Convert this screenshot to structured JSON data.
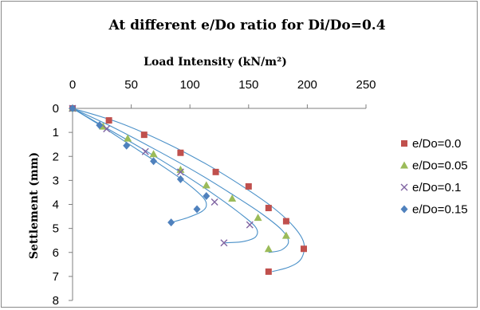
{
  "chart_data": {
    "type": "scatter",
    "title": "At different e/Do ratio for Di/Do=0.4",
    "xlabel": "Load Intensity (kN/m²)",
    "ylabel": "Settlement (mm)",
    "xlim": [
      0,
      250
    ],
    "ylim": [
      0,
      8
    ],
    "y_inverted": true,
    "x_axis_position": "top",
    "xticks": [
      "0",
      "50",
      "100",
      "150",
      "200",
      "250"
    ],
    "yticks": [
      "0",
      "1",
      "2",
      "3",
      "4",
      "5",
      "6",
      "7",
      "8"
    ],
    "grid": false,
    "legend_position": "right",
    "series": [
      {
        "name": "e/Do=0.0",
        "marker": "square",
        "color": "#c0504d",
        "points": [
          [
            0,
            0
          ],
          [
            31,
            0.5
          ],
          [
            61,
            1.1
          ],
          [
            92,
            1.85
          ],
          [
            122,
            2.65
          ],
          [
            150,
            3.25
          ],
          [
            167,
            4.15
          ],
          [
            182,
            4.7
          ],
          [
            197,
            5.85
          ],
          [
            167,
            6.8
          ]
        ],
        "curve": [
          [
            0,
            0
          ],
          [
            40,
            0.6
          ],
          [
            80,
            1.45
          ],
          [
            115,
            2.35
          ],
          [
            145,
            3.25
          ],
          [
            170,
            4.1
          ],
          [
            188,
            4.9
          ],
          [
            197,
            5.6
          ],
          [
            195,
            6.25
          ],
          [
            185,
            6.6
          ],
          [
            170,
            6.8
          ]
        ]
      },
      {
        "name": "e/Do=0.05",
        "marker": "triangle",
        "color": "#9bbb59",
        "points": [
          [
            0,
            0
          ],
          [
            26,
            0.75
          ],
          [
            47,
            1.25
          ],
          [
            69,
            1.9
          ],
          [
            92,
            2.55
          ],
          [
            114,
            3.2
          ],
          [
            136,
            3.75
          ],
          [
            158,
            4.55
          ],
          [
            182,
            5.3
          ],
          [
            167,
            5.85
          ]
        ],
        "curve": [
          [
            0,
            0
          ],
          [
            35,
            0.8
          ],
          [
            70,
            1.7
          ],
          [
            105,
            2.65
          ],
          [
            135,
            3.55
          ],
          [
            160,
            4.35
          ],
          [
            178,
            5.05
          ],
          [
            184,
            5.55
          ],
          [
            178,
            5.9
          ],
          [
            167,
            6.0
          ]
        ]
      },
      {
        "name": "e/Do=0.1",
        "marker": "x",
        "color": "#8064a2",
        "points": [
          [
            0,
            0
          ],
          [
            29,
            0.85
          ],
          [
            62,
            1.8
          ],
          [
            92,
            2.65
          ],
          [
            121,
            3.9
          ],
          [
            151,
            4.85
          ],
          [
            129,
            5.6
          ]
        ],
        "curve": [
          [
            0,
            0
          ],
          [
            30,
            0.85
          ],
          [
            60,
            1.7
          ],
          [
            90,
            2.6
          ],
          [
            118,
            3.5
          ],
          [
            142,
            4.35
          ],
          [
            156,
            4.95
          ],
          [
            156,
            5.35
          ],
          [
            145,
            5.55
          ],
          [
            130,
            5.6
          ]
        ]
      },
      {
        "name": "e/Do=0.15",
        "marker": "diamond",
        "color": "#4f81bd",
        "points": [
          [
            0,
            0
          ],
          [
            23,
            0.7
          ],
          [
            46,
            1.55
          ],
          [
            69,
            2.2
          ],
          [
            92,
            2.95
          ],
          [
            114,
            3.65
          ],
          [
            106,
            4.2
          ],
          [
            84,
            4.75
          ]
        ],
        "curve": [
          [
            0,
            0
          ],
          [
            25,
            0.75
          ],
          [
            50,
            1.55
          ],
          [
            75,
            2.35
          ],
          [
            97,
            3.1
          ],
          [
            111,
            3.7
          ],
          [
            114,
            4.05
          ],
          [
            110,
            4.3
          ],
          [
            98,
            4.55
          ],
          [
            84,
            4.75
          ]
        ]
      }
    ]
  }
}
